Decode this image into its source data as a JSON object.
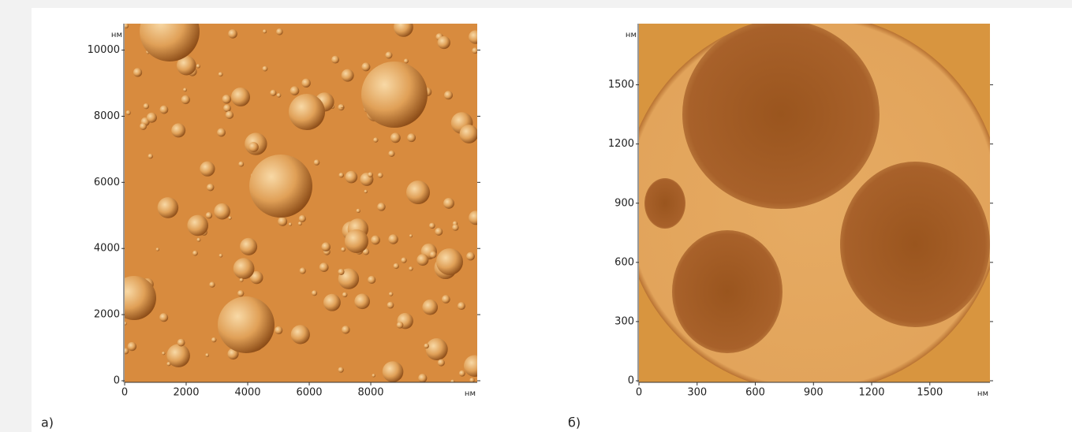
{
  "chart_data": [
    {
      "type": "image",
      "xlabel": "нм",
      "ylabel": "нм",
      "panel_label": "а)",
      "xlim": [
        0,
        11460
      ],
      "ylim": [
        0,
        10800
      ],
      "xticks": [
        0,
        2000,
        4000,
        6000,
        8000
      ],
      "yticks": [
        0,
        2000,
        4000,
        6000,
        8000,
        10000
      ]
    },
    {
      "type": "image",
      "xlabel": "нм",
      "ylabel": "нм",
      "panel_label": "б)",
      "xlim": [
        0,
        1810
      ],
      "ylim": [
        0,
        1810
      ],
      "xticks": [
        0,
        300,
        600,
        900,
        1200,
        1500
      ],
      "yticks": [
        0,
        300,
        600,
        900,
        1200,
        1500
      ]
    }
  ]
}
